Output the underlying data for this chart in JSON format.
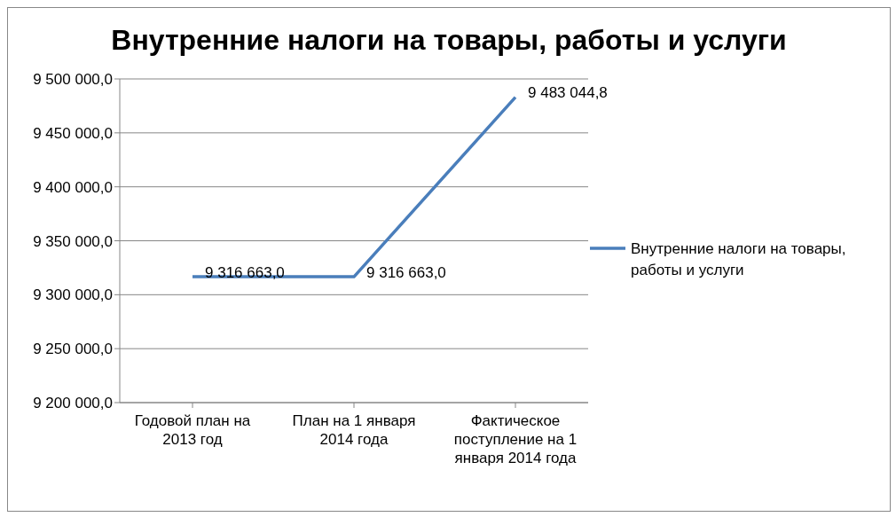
{
  "chart_data": {
    "type": "line",
    "title": "Внутренние налоги на товары, работы и услуги",
    "categories": [
      "Годовой план на 2013 год",
      "План на 1 января 2014 года",
      "Фактическое поступление на 1 января 2014 года"
    ],
    "series": [
      {
        "name": "Внутренние налоги на товары, работы и услуги",
        "color": "#4a7ebb",
        "values": [
          9316663.0,
          9316663.0,
          9483044.8
        ],
        "value_labels": [
          "9 316 663,0",
          "9 316 663,0",
          "9 483 044,8"
        ]
      }
    ],
    "ylim": [
      9200000,
      9500000
    ],
    "yticks": [
      {
        "value": 9200000,
        "label": "9 200 000,0"
      },
      {
        "value": 9250000,
        "label": "9 250 000,0"
      },
      {
        "value": 9300000,
        "label": "9 300 000,0"
      },
      {
        "value": 9350000,
        "label": "9 350 000,0"
      },
      {
        "value": 9400000,
        "label": "9 400 000,0"
      },
      {
        "value": 9450000,
        "label": "9 450 000,0"
      },
      {
        "value": 9500000,
        "label": "9 500 000,0"
      }
    ],
    "grid": "y",
    "legend": "right",
    "marker": "none",
    "line_style": "solid"
  }
}
